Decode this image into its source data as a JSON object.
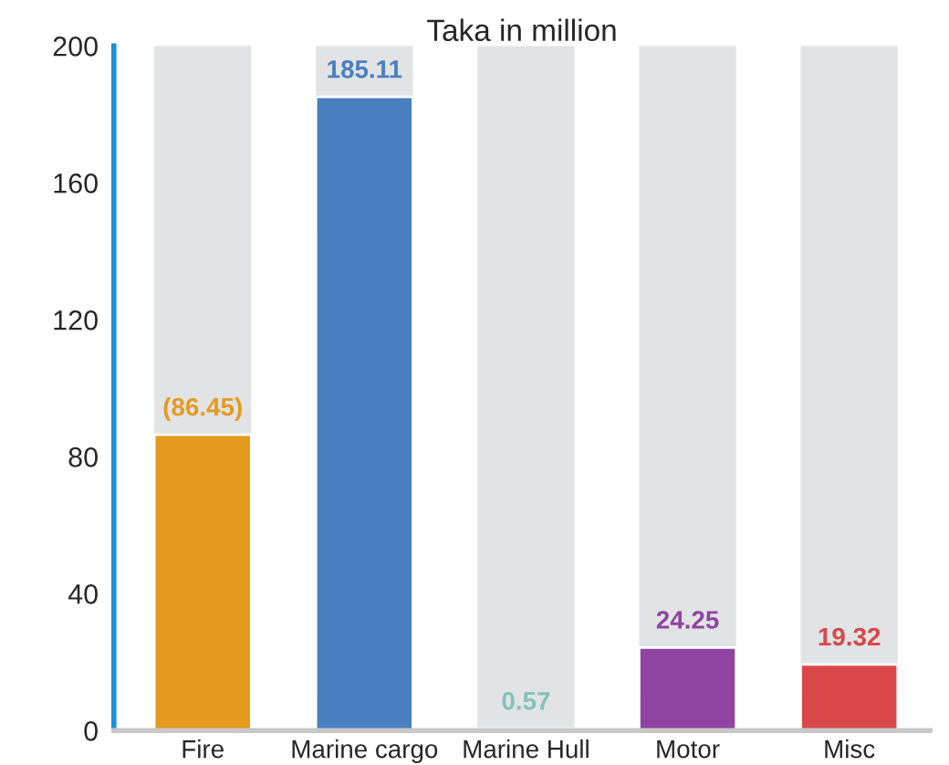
{
  "chart_data": {
    "type": "bar",
    "title": "Taka in million",
    "categories": [
      "Fire",
      "Marine cargo",
      "Marine Hull",
      "Motor",
      "Misc"
    ],
    "values": [
      86.45,
      185.11,
      0.57,
      24.25,
      19.32
    ],
    "value_labels": [
      "(86.45)",
      "185.11",
      "0.57",
      "24.25",
      "19.32"
    ],
    "colors": [
      "#e39a1e",
      "#4a7fc0",
      "#7fc4b8",
      "#8e44a0",
      "#d9474a"
    ],
    "ylim": [
      0,
      200
    ],
    "yticks": [
      0,
      40,
      80,
      120,
      160,
      200
    ],
    "grid": false
  }
}
